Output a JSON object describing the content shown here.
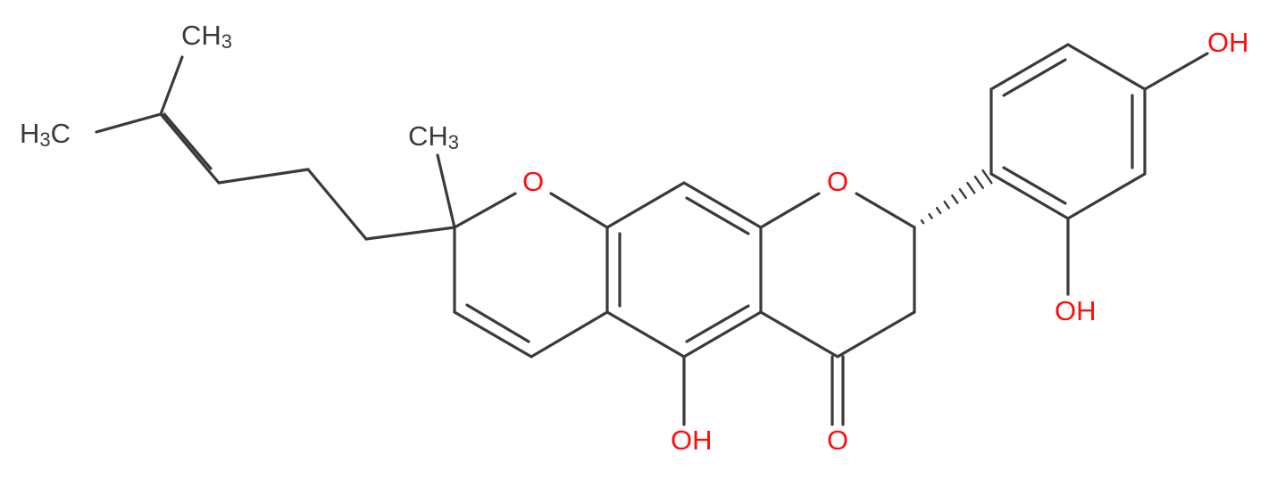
{
  "labels": {
    "methyl_top": {
      "text": "CH",
      "sub": "3"
    },
    "methyl_left": {
      "text": "H",
      "sub": "3",
      "after": "C"
    },
    "methyl_mid": {
      "text": "CH",
      "sub": "3"
    },
    "oxygen_ring1": "O",
    "oxygen_ring2": "O",
    "oxygen_carbonyl": "O",
    "hydroxyl_5": "OH",
    "hydroxyl_2p": "OH",
    "hydroxyl_4p": "OH"
  }
}
